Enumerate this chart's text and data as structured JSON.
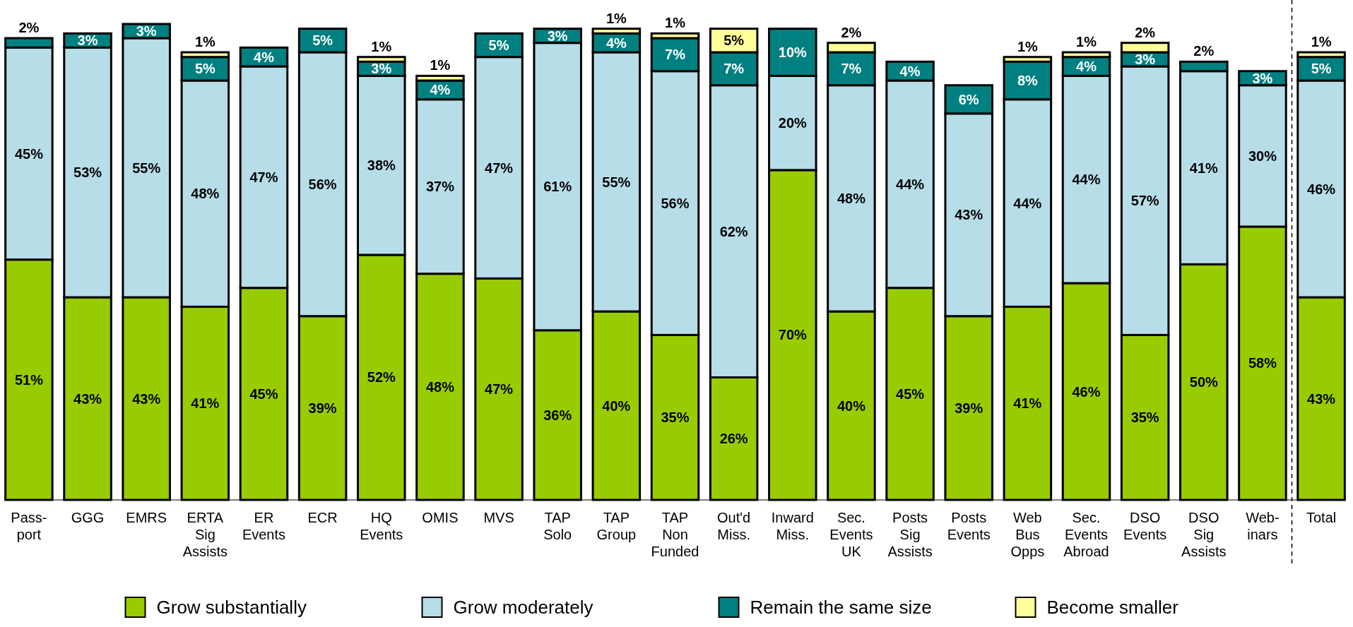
{
  "chart_data": {
    "type": "bar",
    "stacked": true,
    "legend": "bottom",
    "categories": [
      "Pass-\nport",
      "GGG",
      "EMRS",
      "ERTA\nSig\nAssists",
      "ER\nEvents",
      "ECR",
      "HQ\nEvents",
      "OMIS",
      "MVS",
      "TAP\nSolo",
      "TAP\nGroup",
      "TAP\nNon\nFunded",
      "Out'd\nMiss.",
      "Inward\nMiss.",
      "Sec.\nEvents\nUK",
      "Posts\nSig\nAssists",
      "Posts\nEvents",
      "Web\nBus\nOpps",
      "Sec.\nEvents\nAbroad",
      "DSO\nEvents",
      "DSO\nSig\nAssists",
      "Web-\ninars",
      "Total"
    ],
    "series": [
      {
        "name": "Grow substantially",
        "color": "#99cc00",
        "values": [
          51,
          43,
          43,
          41,
          45,
          39,
          52,
          48,
          47,
          36,
          40,
          35,
          26,
          70,
          40,
          45,
          39,
          41,
          46,
          35,
          50,
          58,
          43
        ],
        "value_labels": [
          "51%",
          "43%",
          "43%",
          "41%",
          "45%",
          "39%",
          "52%",
          "48%",
          "47%",
          "36%",
          "40%",
          "35%",
          "26%",
          "70%",
          "40%",
          "45%",
          "39%",
          "41%",
          "46%",
          "35%",
          "50%",
          "58%",
          "43%"
        ]
      },
      {
        "name": "Grow moderately",
        "color": "#b7dde8",
        "values": [
          45,
          53,
          55,
          48,
          47,
          56,
          38,
          37,
          47,
          61,
          55,
          56,
          62,
          20,
          48,
          44,
          43,
          44,
          44,
          57,
          41,
          30,
          46
        ],
        "value_labels": [
          "45%",
          "53%",
          "55%",
          "48%",
          "47%",
          "56%",
          "38%",
          "37%",
          "47%",
          "61%",
          "55%",
          "56%",
          "62%",
          "20%",
          "48%",
          "44%",
          "43%",
          "44%",
          "44%",
          "57%",
          "41%",
          "30%",
          "46%"
        ]
      },
      {
        "name": "Remain the same size",
        "color": "#008080",
        "values": [
          2,
          3,
          3,
          5,
          4,
          5,
          3,
          4,
          5,
          3,
          4,
          7,
          7,
          10,
          7,
          4,
          6,
          8,
          4,
          3,
          2,
          3,
          5
        ],
        "value_labels": [
          "2%",
          "3%",
          "3%",
          "5%",
          "4%",
          "5%",
          "3%",
          "4%",
          "5%",
          "3%",
          "4%",
          "7%",
          "7%",
          "10%",
          "7%",
          "4%",
          "6%",
          "8%",
          "4%",
          "3%",
          "2%",
          "3%",
          "5%"
        ]
      },
      {
        "name": "Become smaller",
        "color": "#ffff99",
        "values": [
          null,
          null,
          null,
          1,
          null,
          null,
          1,
          1,
          null,
          null,
          1,
          1,
          5,
          null,
          2,
          null,
          null,
          1,
          1,
          2,
          null,
          null,
          1
        ],
        "value_labels": [
          null,
          null,
          null,
          "1%",
          null,
          null,
          "1%",
          "1%",
          null,
          null,
          "1%",
          "1%",
          "5%",
          null,
          "2%",
          null,
          null,
          "1%",
          "1%",
          "2%",
          null,
          null,
          "1%"
        ]
      }
    ]
  }
}
